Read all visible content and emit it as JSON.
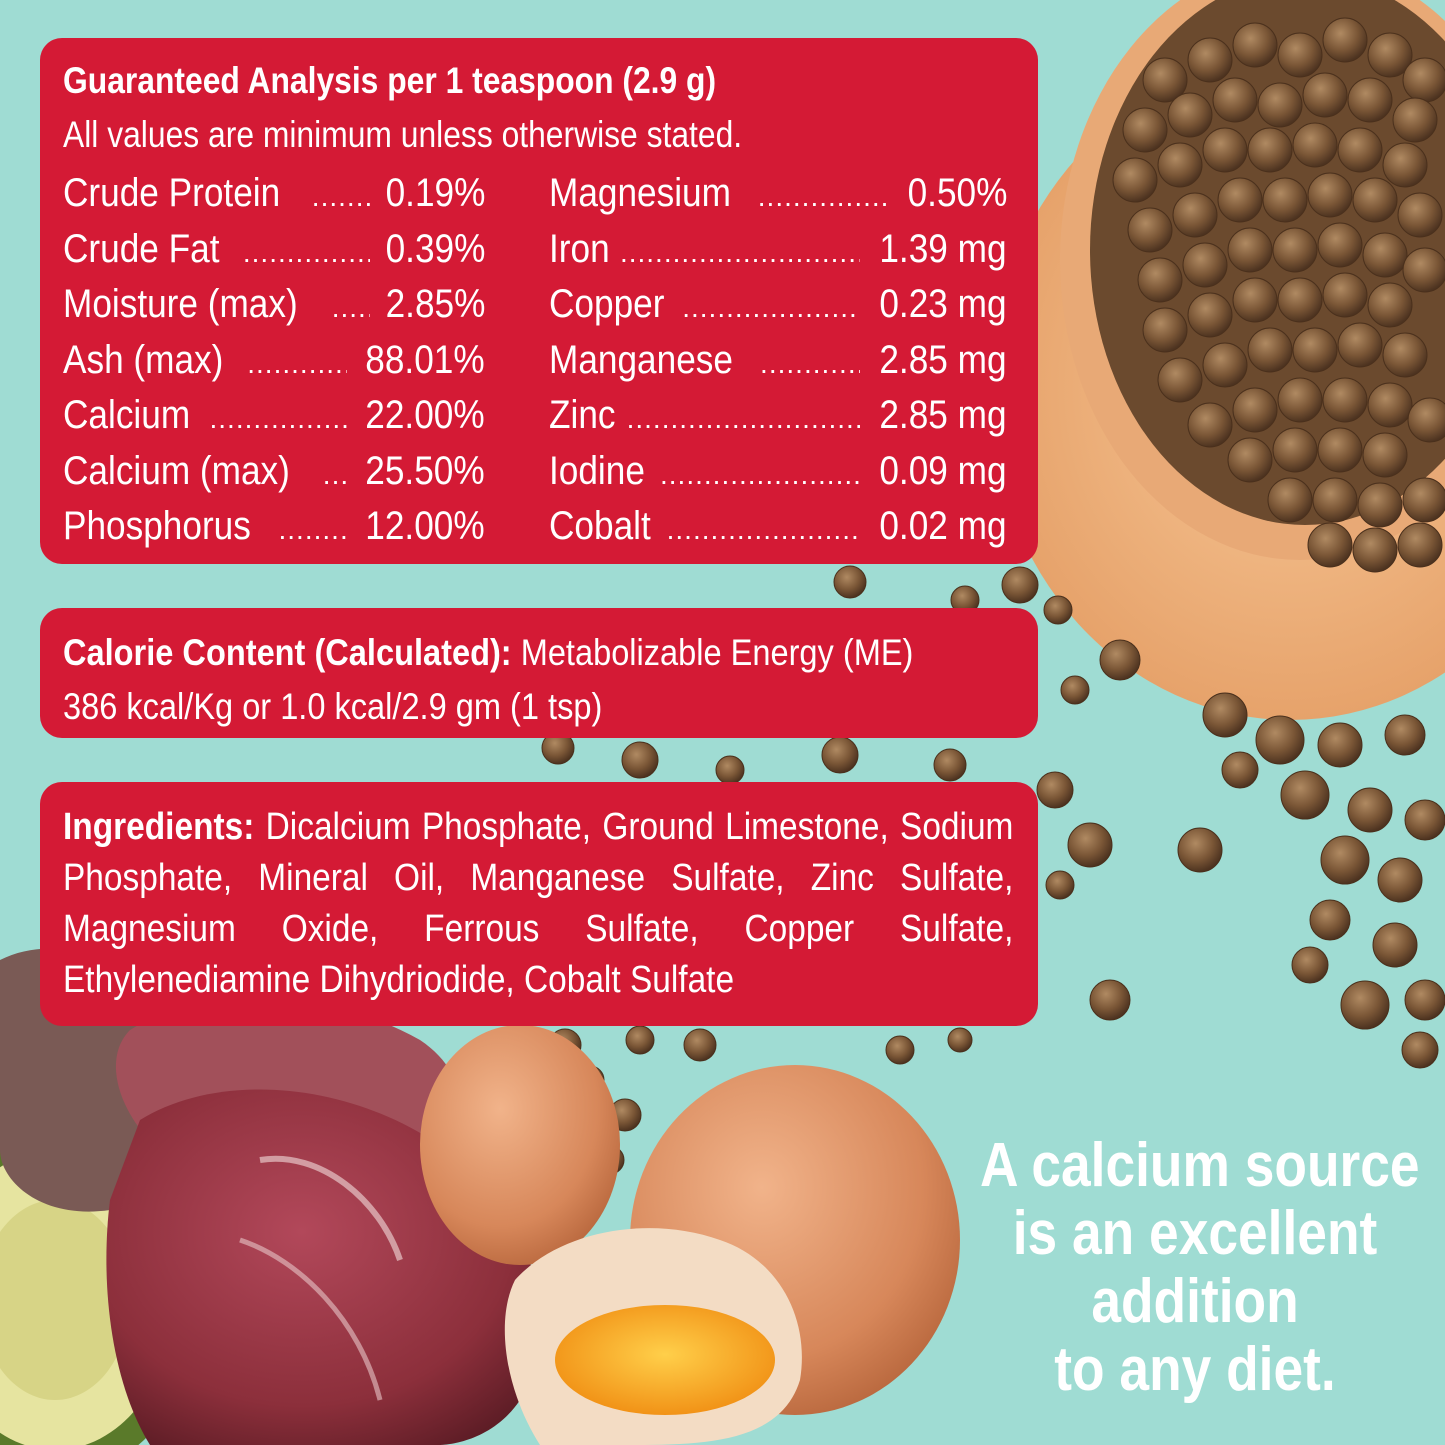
{
  "analysis": {
    "title": "Guaranteed Analysis per 1 teaspoon (2.9 g)",
    "subtitle": "All values are minimum unless otherwise stated.",
    "left_items": [
      {
        "name": "Crude Protein",
        "value": "0.19%"
      },
      {
        "name": "Crude  Fat",
        "value": "0.39%"
      },
      {
        "name": "Moisture  (max)",
        "value": "2.85%"
      },
      {
        "name": "Ash (max)",
        "value": "88.01%"
      },
      {
        "name": "Calcium",
        "value": "22.00%"
      },
      {
        "name": "Calcium  (max)",
        "value": "25.50%"
      },
      {
        "name": "Phosphorus",
        "value": "12.00%"
      }
    ],
    "right_items": [
      {
        "name": "Magnesium",
        "value": "0.50%"
      },
      {
        "name": "Iron",
        "value": "1.39 mg"
      },
      {
        "name": "Copper",
        "value": "0.23 mg"
      },
      {
        "name": "Manganese",
        "value": "2.85  mg"
      },
      {
        "name": "Zinc",
        "value": "2.85  mg"
      },
      {
        "name": "Iodine",
        "value": "0.09  mg"
      },
      {
        "name": "Cobalt",
        "value": "0.02  mg"
      }
    ]
  },
  "calorie": {
    "label": "Calorie Content (Calculated):",
    "text": " Metabolizable Energy (ME)",
    "line2": "386 kcal/Kg or 1.0 kcal/2.9 gm (1 tsp)"
  },
  "ingredients": {
    "label": "Ingredients:",
    "text": " Dicalcium Phosphate, Ground Limestone, Sodium Phosphate, Mineral Oil, Manganese Sulfate, Zinc Sulfate, Magnesium Oxide, Ferrous Sulfate, Copper Sulfate, Ethylenediamine Dihydriodide, Cobalt Sulfate"
  },
  "tagline": [
    "A calcium source",
    "is an excellent",
    "addition",
    "to any diet."
  ],
  "colors": {
    "background": "#9fdcd3",
    "panel": "#d41a35",
    "text": "#ffffff",
    "kibble": "#7a5636",
    "bowl": "#f1b57f",
    "egg": "#d9895a",
    "meat": "#8e2f3a",
    "zucchini": "#6f8f3a"
  },
  "icons": [
    "kibble-bowl-image",
    "kibble-pieces-image",
    "meat-image",
    "egg-image",
    "zucchini-image"
  ]
}
